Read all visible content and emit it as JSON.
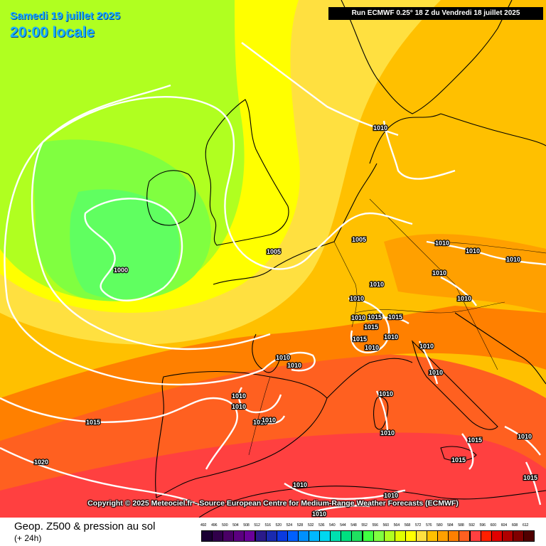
{
  "header": {
    "date": "Samedi 19 juillet 2025",
    "time": "20:00 locale",
    "run": "Run ECMWF 0.25° 18 Z du Vendredi 18 juillet 2025"
  },
  "copyright": "Copyright © 2025 Meteociel.fr - Source European Centre for Medium-Range Weather Forecasts (ECMWF)",
  "footer": {
    "title": "Geop. Z500 & pression au sol",
    "subtitle": "(+ 24h)"
  },
  "legend": {
    "ticks": [
      "492",
      "496",
      "500",
      "504",
      "508",
      "512",
      "516",
      "520",
      "524",
      "528",
      "532",
      "536",
      "540",
      "544",
      "548",
      "552",
      "556",
      "560",
      "564",
      "568",
      "572",
      "576",
      "580",
      "584",
      "588",
      "592",
      "596",
      "600",
      "604",
      "608",
      "612"
    ],
    "colors": [
      "#1a0033",
      "#30004a",
      "#4a0066",
      "#5c0080",
      "#6a0099",
      "#2a1a8a",
      "#1a2ab0",
      "#0a3ae0",
      "#0060ff",
      "#0090ff",
      "#00b8ff",
      "#00d8f0",
      "#00e0b0",
      "#00e080",
      "#20e060",
      "#40ff40",
      "#80ff40",
      "#b0ff20",
      "#e0ff00",
      "#ffff00",
      "#ffe040",
      "#ffc000",
      "#ffa000",
      "#ff8000",
      "#ff6020",
      "#ff4040",
      "#ff2000",
      "#e00000",
      "#b00000",
      "#800000",
      "#500000"
    ]
  },
  "isobars": [
    {
      "label": "1000"
    },
    {
      "label": "1005"
    },
    {
      "label": "1005"
    },
    {
      "label": "1010"
    },
    {
      "label": "1010"
    },
    {
      "label": "1010"
    },
    {
      "label": "1010"
    },
    {
      "label": "1010"
    },
    {
      "label": "1010"
    },
    {
      "label": "1010"
    },
    {
      "label": "1015"
    },
    {
      "label": "1015"
    },
    {
      "label": "1015"
    },
    {
      "label": "1010"
    },
    {
      "label": "1010"
    },
    {
      "label": "1010"
    },
    {
      "label": "1010"
    },
    {
      "label": "1010"
    },
    {
      "label": "1010"
    },
    {
      "label": "1010"
    },
    {
      "label": "1010"
    },
    {
      "label": "1010"
    },
    {
      "label": "1015"
    },
    {
      "label": "1015"
    },
    {
      "label": "1010"
    },
    {
      "label": "1015"
    },
    {
      "label": "1010"
    },
    {
      "label": "1020"
    },
    {
      "label": "1010"
    },
    {
      "label": "1010"
    },
    {
      "label": "1010"
    },
    {
      "label": "1015"
    },
    {
      "label": "1010"
    },
    {
      "label": "1010"
    },
    {
      "label": "1010"
    },
    {
      "label": "1010"
    },
    {
      "label": "1015"
    }
  ],
  "colors": {
    "field_low_core": "#60ff60",
    "field_low": "#40ff40",
    "field_mid": "#b0ff20",
    "field_yellow": "#ffff00",
    "field_orange": "#ffc000",
    "field_deep_orange": "#ff8000",
    "field_red": "#ff4040"
  }
}
